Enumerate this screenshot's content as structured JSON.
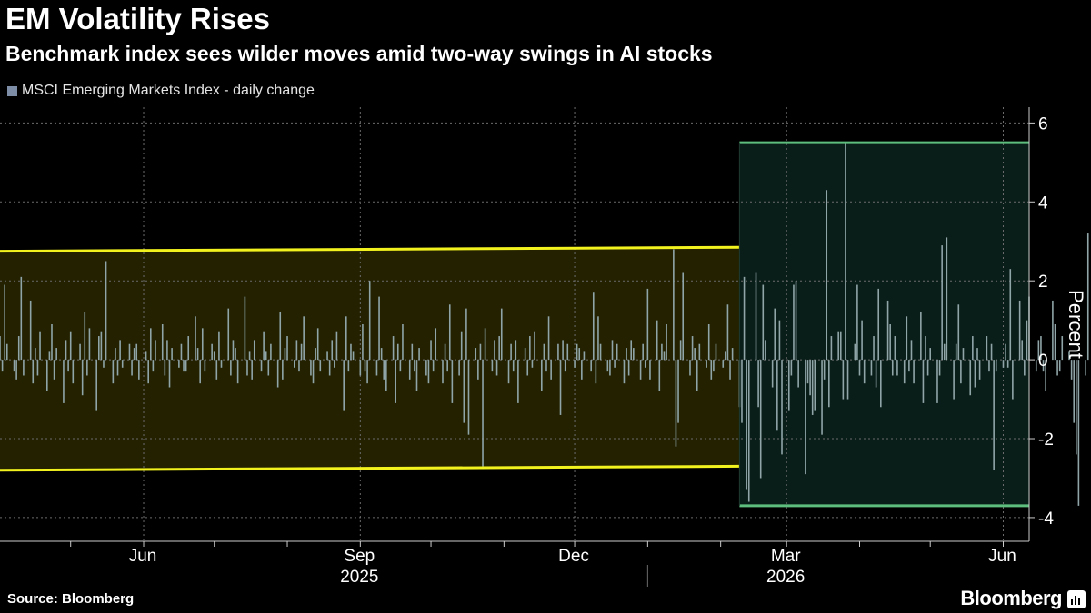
{
  "header": {
    "title": "EM Volatility Rises",
    "subtitle": "Benchmark index sees wilder moves amid two-way swings in AI stocks"
  },
  "footer": {
    "source": "Source: Bloomberg",
    "brand": "Bloomberg"
  },
  "colors": {
    "background": "#000000",
    "bars": "#8fa5a8",
    "legend_swatch": "#7d8da6",
    "yellow_band_line": "#f2f21f",
    "yellow_band_fill": "#232100",
    "green_band_line": "#5dbe7e",
    "green_band_fill": "#0a1e19",
    "grid": "#6b6b6b",
    "axis": "#cccccc"
  },
  "chart_data": {
    "type": "bar",
    "title": "EM Volatility Rises",
    "subtitle": "Benchmark index sees wilder moves amid two-way swings in AI stocks",
    "ylabel": "Percent",
    "ylim": [
      -4.6,
      6.4
    ],
    "y_ticks": [
      6,
      4,
      2,
      0,
      -2,
      -4
    ],
    "x_range": [
      "2025-04-01",
      "2026-06-12"
    ],
    "x_ticks": [
      {
        "label": "Jun",
        "date": "2025-06-01"
      },
      {
        "label": "Sep",
        "date": "2025-09-01"
      },
      {
        "label": "Dec",
        "date": "2025-12-01"
      },
      {
        "label": "Mar",
        "date": "2026-03-01"
      },
      {
        "label": "Jun",
        "date": "2026-06-01"
      }
    ],
    "year_labels": [
      {
        "label": "2025",
        "date": "2025-09-01"
      },
      {
        "label": "2026",
        "date": "2026-03-01"
      }
    ],
    "year_divider_date": "2026-01-01",
    "grid": true,
    "legend": {
      "position": "top-left",
      "entries": [
        "MSCI Emerging Markets Index - daily change"
      ]
    },
    "annotations": [
      {
        "type": "band",
        "color": "yellow",
        "start": "2025-04-01",
        "end": "2026-02-09",
        "upper": [
          2.75,
          2.85
        ],
        "lower": [
          -2.8,
          -2.7
        ]
      },
      {
        "type": "band",
        "color": "green",
        "start": "2026-02-09",
        "end": "2026-06-12",
        "upper": [
          5.5,
          5.5
        ],
        "lower": [
          -3.7,
          -3.7
        ]
      }
    ],
    "series": [
      {
        "name": "MSCI Emerging Markets Index - daily change",
        "start_date": "2025-04-01",
        "values": [
          0.6,
          -0.3,
          1.9,
          0.4,
          -0.3,
          -0.5,
          0.6,
          2.1,
          -0.4,
          1.5,
          -0.6,
          0.3,
          -0.4,
          0.7,
          -0.8,
          0.2,
          0.9,
          -0.5,
          0.3,
          -1.1,
          0.5,
          -0.3,
          0.7,
          -0.6,
          0.4,
          -0.9,
          1.2,
          -0.4,
          0.8,
          -1.3,
          0.6,
          0.7,
          -0.2,
          2.5,
          -0.6,
          0.3,
          -0.4,
          0.5,
          -0.2,
          0.4,
          -0.4,
          0.3,
          0.4,
          -0.5,
          0.2,
          -0.6,
          0.8,
          -0.3,
          0.5,
          0.9,
          -0.4,
          0.5,
          -0.7,
          0.3,
          -0.2,
          0.4,
          -0.3,
          -0.3,
          0.6,
          1.1,
          0.3,
          -0.6,
          0.8,
          -0.3,
          0.4,
          0.2,
          -0.5,
          0.7,
          -0.2,
          1.3,
          -0.4,
          0.5,
          0.3,
          -0.6,
          1.6,
          -0.4,
          0.2,
          -0.5,
          0.5,
          -0.3,
          0.7,
          0.2,
          -0.4,
          0.4,
          -0.7,
          1.2,
          -0.5,
          0.3,
          0.6,
          -0.2,
          0.5,
          -0.3,
          0.4,
          1.1,
          -0.4,
          -0.6,
          0.3,
          0.8,
          -0.3,
          0.2,
          -0.4,
          0.5,
          -0.2,
          0.7,
          -1.3,
          1.1,
          -0.3,
          0.4,
          0.2,
          -0.4,
          0.9,
          -0.3,
          -0.6,
          2.0,
          -0.4,
          1.6,
          0.3,
          -0.5,
          -0.8,
          0.6,
          -1.1,
          0.4,
          -0.3,
          0.9,
          -0.5,
          0.4,
          -0.3,
          -0.8,
          0.3,
          -0.4,
          -0.6,
          0.5,
          -0.3,
          0.8,
          -0.6,
          0.4,
          -0.3,
          1.4,
          -1.1,
          -0.4,
          0.7,
          -1.6,
          1.3,
          -1.9,
          0.3,
          -0.5,
          0.4,
          -2.7,
          0.8,
          -0.3,
          0.5,
          -0.4,
          0.6,
          1.3,
          -0.6,
          0.4,
          -0.3,
          0.5,
          -1.1,
          0.3,
          -0.4,
          0.6,
          -0.2,
          0.7,
          -0.8,
          0.4,
          -0.3,
          1.1,
          -0.5,
          0.4,
          -1.4,
          0.5,
          -0.3,
          0.4,
          -0.2,
          0.4,
          0.3,
          -0.5,
          0.2,
          -0.3,
          1.7,
          -0.6,
          1.1,
          0.4,
          -0.3,
          -0.4,
          0.5,
          -0.2,
          0.4,
          -0.6,
          0.3,
          -0.4,
          0.5,
          0.3,
          -0.5,
          0.4,
          -0.2,
          1.8,
          -0.5,
          1.0,
          -0.8,
          0.4,
          0.2,
          0.9,
          2.8,
          -2.2,
          -1.6,
          0.5,
          2.2,
          -0.4,
          0.6,
          0.3,
          -0.8,
          0.4,
          -0.2,
          0.9,
          -0.5,
          -0.3,
          0.4,
          -0.2,
          0.2,
          1.4,
          -0.5,
          0.3,
          -1.2,
          -1.6,
          2.1,
          -3.3,
          -3.6,
          2.2,
          -1.2,
          -3.0,
          1.9,
          0.5,
          -0.7,
          1.3,
          -1.8,
          1.0,
          -2.4,
          -1.3,
          -0.4,
          1.9,
          2.0,
          -0.7,
          -2.9,
          -0.6,
          -0.9,
          -1.4,
          -1.3,
          -1.9,
          -0.5,
          4.3,
          -1.2,
          0.6,
          0.7,
          0.7,
          -1.0,
          5.5,
          -1.0,
          0.4,
          1.9,
          -0.4,
          1.0,
          -0.6,
          -0.4,
          0.6,
          -0.7,
          1.8,
          -1.2,
          1.5,
          0.9,
          -0.4,
          0.6,
          -0.4,
          -0.6,
          1.1,
          -0.3,
          0.5,
          -0.6,
          1.2,
          -1.1,
          0.6,
          -0.4,
          0.3,
          -1.1,
          -0.4,
          2.9,
          0.4,
          3.1,
          -1.0,
          0.4,
          1.4,
          -0.6,
          0.3,
          -0.9,
          0.6,
          -0.7,
          0.3,
          -0.5,
          0.6,
          -0.3,
          0.4,
          -2.8,
          -0.3,
          -0.2,
          0.4,
          -0.2,
          2.3,
          -1.0,
          1.5,
          0.5,
          -0.4,
          1.0,
          1.6,
          -0.3,
          0.5,
          0.6,
          -0.3,
          -0.8,
          1.5,
          0.9,
          -0.4,
          -0.3,
          0.6,
          0.2,
          -0.5,
          -1.6,
          -2.4,
          -3.7,
          -0.4,
          3.2
        ]
      }
    ]
  }
}
